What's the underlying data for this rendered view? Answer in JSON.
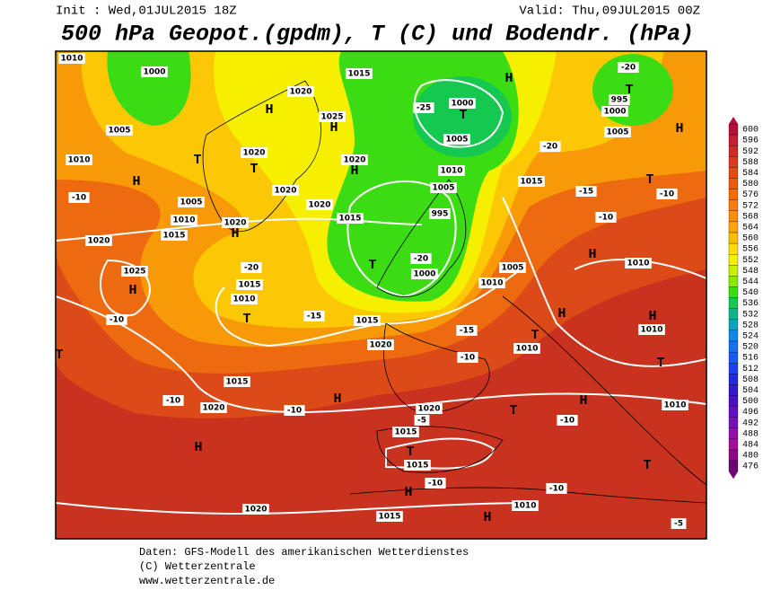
{
  "header": {
    "init": "Init : Wed,01JUL2015 18Z",
    "valid": "Valid: Thu,09JUL2015 00Z",
    "title": "500 hPa Geopot.(gpdm), T (C) und Bodendr. (hPa)"
  },
  "colorbar": {
    "levels": [
      600,
      596,
      592,
      588,
      584,
      580,
      576,
      572,
      568,
      564,
      560,
      556,
      552,
      548,
      544,
      540,
      536,
      532,
      528,
      524,
      520,
      516,
      512,
      508,
      504,
      500,
      496,
      492,
      488,
      484,
      480,
      476
    ],
    "colors": [
      "#b4103c",
      "#c81e32",
      "#d22a28",
      "#dc3a1e",
      "#e64a14",
      "#ee5a10",
      "#f26c0c",
      "#f67e0a",
      "#f89208",
      "#faa608",
      "#fcbc06",
      "#fede04",
      "#f6f000",
      "#c8f000",
      "#8ce800",
      "#3cdc14",
      "#14c850",
      "#10b48c",
      "#10a0c0",
      "#1488e0",
      "#1670f0",
      "#1a58f4",
      "#1c40f0",
      "#2428e0",
      "#3218d0",
      "#4a10c8",
      "#6410c0",
      "#7a10b4",
      "#9010a8",
      "#a0109c",
      "#8a0a88",
      "#6c0670"
    ]
  },
  "map_labels": [
    "1010",
    "1000",
    "1015",
    "1020",
    "1025",
    "H",
    "H",
    "1020",
    "H",
    "1005",
    "1010",
    "H",
    "1020",
    "T",
    "T",
    "1020",
    "1020",
    "1005",
    "1010",
    "1015",
    "1020",
    "H",
    "1020",
    "1025",
    "H",
    "1015",
    "1010",
    "T",
    "1015",
    "995",
    "T",
    "1000",
    "1005",
    "1000",
    "T",
    "1005",
    "1010",
    "1015",
    "H",
    "1005",
    "1010",
    "1015",
    "1020",
    "1015",
    "1020",
    "H",
    "1020",
    "1015",
    "1015",
    "T",
    "H",
    "1020",
    "1015",
    "T",
    "1010",
    "H",
    "H",
    "1010",
    "1010",
    "H",
    "T",
    "1010",
    "T",
    "H",
    "H",
    "1010",
    "T",
    "995",
    "1000",
    "1005",
    "H",
    "T",
    "T",
    "H",
    "-10",
    "-20",
    "-15",
    "-25",
    "-20",
    "-10",
    "-10",
    "-5",
    "-10",
    "-10",
    "-10",
    "-5",
    "-10",
    "-15",
    "-20",
    "-10",
    "-10",
    "-15",
    "-10",
    "-20",
    "T"
  ],
  "footer": {
    "line1": "Daten: GFS-Modell des amerikanischen Wetterdienstes",
    "line2": "(C) Wetterzentrale",
    "line3": "www.wetterzentrale.de"
  }
}
